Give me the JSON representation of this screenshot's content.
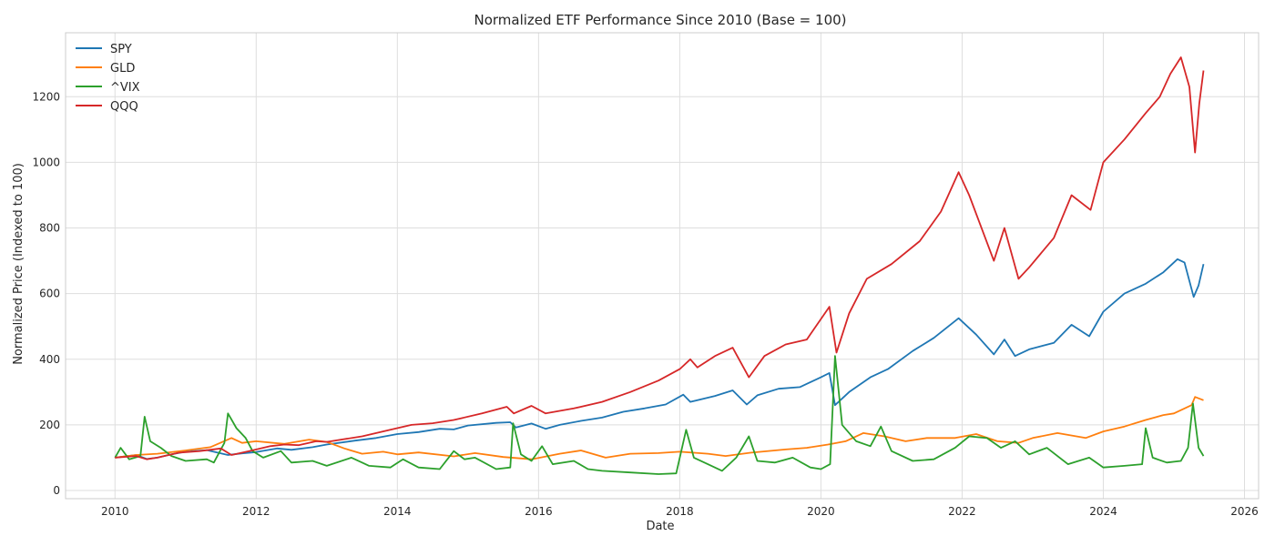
{
  "chart_data": {
    "type": "line",
    "title": "Normalized ETF Performance Since 2010 (Base = 100)",
    "xlabel": "Date",
    "ylabel": "Normalized Price (Indexed to 100)",
    "xlim": [
      2009.3,
      2026.2
    ],
    "ylim": [
      -25,
      1395
    ],
    "x_ticks": [
      2010,
      2012,
      2014,
      2016,
      2018,
      2020,
      2022,
      2024,
      2026
    ],
    "y_ticks": [
      0,
      200,
      400,
      600,
      800,
      1000,
      1200
    ],
    "grid": true,
    "legend_position": "top-left",
    "series": [
      {
        "name": "SPY",
        "color": "#1f77b4",
        "points": [
          [
            2010.0,
            100
          ],
          [
            2010.3,
            108
          ],
          [
            2010.45,
            96
          ],
          [
            2010.6,
            100
          ],
          [
            2010.8,
            110
          ],
          [
            2011.0,
            118
          ],
          [
            2011.3,
            123
          ],
          [
            2011.6,
            108
          ],
          [
            2011.8,
            113
          ],
          [
            2012.0,
            117
          ],
          [
            2012.3,
            128
          ],
          [
            2012.5,
            124
          ],
          [
            2012.8,
            132
          ],
          [
            2013.0,
            140
          ],
          [
            2013.4,
            152
          ],
          [
            2013.7,
            160
          ],
          [
            2014.0,
            172
          ],
          [
            2014.3,
            178
          ],
          [
            2014.6,
            188
          ],
          [
            2014.8,
            186
          ],
          [
            2015.0,
            198
          ],
          [
            2015.4,
            206
          ],
          [
            2015.6,
            208
          ],
          [
            2015.68,
            192
          ],
          [
            2015.9,
            204
          ],
          [
            2016.1,
            188
          ],
          [
            2016.3,
            200
          ],
          [
            2016.6,
            212
          ],
          [
            2016.9,
            222
          ],
          [
            2017.2,
            240
          ],
          [
            2017.5,
            250
          ],
          [
            2017.8,
            262
          ],
          [
            2018.05,
            292
          ],
          [
            2018.15,
            270
          ],
          [
            2018.5,
            288
          ],
          [
            2018.75,
            305
          ],
          [
            2018.95,
            262
          ],
          [
            2019.1,
            290
          ],
          [
            2019.4,
            310
          ],
          [
            2019.7,
            315
          ],
          [
            2020.0,
            345
          ],
          [
            2020.12,
            358
          ],
          [
            2020.2,
            260
          ],
          [
            2020.4,
            300
          ],
          [
            2020.7,
            345
          ],
          [
            2020.95,
            370
          ],
          [
            2021.3,
            425
          ],
          [
            2021.6,
            465
          ],
          [
            2021.95,
            525
          ],
          [
            2022.2,
            475
          ],
          [
            2022.45,
            415
          ],
          [
            2022.6,
            460
          ],
          [
            2022.75,
            410
          ],
          [
            2022.95,
            430
          ],
          [
            2023.3,
            450
          ],
          [
            2023.55,
            505
          ],
          [
            2023.8,
            470
          ],
          [
            2024.0,
            545
          ],
          [
            2024.3,
            600
          ],
          [
            2024.6,
            630
          ],
          [
            2024.85,
            665
          ],
          [
            2025.05,
            705
          ],
          [
            2025.15,
            695
          ],
          [
            2025.28,
            590
          ],
          [
            2025.35,
            625
          ],
          [
            2025.42,
            690
          ]
        ]
      },
      {
        "name": "GLD",
        "color": "#ff7f0e",
        "points": [
          [
            2010.0,
            100
          ],
          [
            2010.3,
            108
          ],
          [
            2010.6,
            112
          ],
          [
            2011.0,
            122
          ],
          [
            2011.35,
            132
          ],
          [
            2011.65,
            160
          ],
          [
            2011.8,
            145
          ],
          [
            2012.0,
            150
          ],
          [
            2012.4,
            142
          ],
          [
            2012.75,
            155
          ],
          [
            2013.0,
            148
          ],
          [
            2013.25,
            128
          ],
          [
            2013.5,
            112
          ],
          [
            2013.8,
            118
          ],
          [
            2014.0,
            110
          ],
          [
            2014.3,
            116
          ],
          [
            2014.8,
            104
          ],
          [
            2015.1,
            114
          ],
          [
            2015.5,
            102
          ],
          [
            2015.9,
            95
          ],
          [
            2016.3,
            112
          ],
          [
            2016.6,
            122
          ],
          [
            2016.95,
            100
          ],
          [
            2017.3,
            112
          ],
          [
            2017.7,
            114
          ],
          [
            2018.0,
            118
          ],
          [
            2018.4,
            112
          ],
          [
            2018.65,
            105
          ],
          [
            2019.0,
            115
          ],
          [
            2019.5,
            125
          ],
          [
            2019.8,
            130
          ],
          [
            2020.1,
            140
          ],
          [
            2020.35,
            150
          ],
          [
            2020.6,
            175
          ],
          [
            2020.9,
            165
          ],
          [
            2021.2,
            150
          ],
          [
            2021.5,
            160
          ],
          [
            2021.9,
            160
          ],
          [
            2022.2,
            172
          ],
          [
            2022.5,
            150
          ],
          [
            2022.8,
            145
          ],
          [
            2023.0,
            160
          ],
          [
            2023.35,
            175
          ],
          [
            2023.75,
            160
          ],
          [
            2024.0,
            180
          ],
          [
            2024.3,
            195
          ],
          [
            2024.6,
            215
          ],
          [
            2024.85,
            230
          ],
          [
            2025.0,
            235
          ],
          [
            2025.25,
            260
          ],
          [
            2025.3,
            285
          ],
          [
            2025.42,
            275
          ]
        ]
      },
      {
        "name": "^VIX",
        "color": "#2ca02c",
        "points": [
          [
            2010.0,
            100
          ],
          [
            2010.08,
            130
          ],
          [
            2010.2,
            95
          ],
          [
            2010.36,
            105
          ],
          [
            2010.42,
            225
          ],
          [
            2010.5,
            150
          ],
          [
            2010.65,
            130
          ],
          [
            2010.8,
            105
          ],
          [
            2011.0,
            90
          ],
          [
            2011.3,
            95
          ],
          [
            2011.4,
            85
          ],
          [
            2011.55,
            145
          ],
          [
            2011.6,
            235
          ],
          [
            2011.72,
            190
          ],
          [
            2011.85,
            160
          ],
          [
            2011.95,
            120
          ],
          [
            2012.1,
            100
          ],
          [
            2012.35,
            120
          ],
          [
            2012.5,
            85
          ],
          [
            2012.8,
            90
          ],
          [
            2013.0,
            75
          ],
          [
            2013.35,
            100
          ],
          [
            2013.6,
            75
          ],
          [
            2013.9,
            70
          ],
          [
            2014.08,
            95
          ],
          [
            2014.3,
            70
          ],
          [
            2014.6,
            65
          ],
          [
            2014.8,
            120
          ],
          [
            2014.95,
            95
          ],
          [
            2015.1,
            100
          ],
          [
            2015.4,
            65
          ],
          [
            2015.6,
            70
          ],
          [
            2015.64,
            205
          ],
          [
            2015.75,
            110
          ],
          [
            2015.9,
            90
          ],
          [
            2016.05,
            135
          ],
          [
            2016.2,
            80
          ],
          [
            2016.5,
            90
          ],
          [
            2016.7,
            65
          ],
          [
            2016.9,
            60
          ],
          [
            2017.3,
            55
          ],
          [
            2017.7,
            50
          ],
          [
            2017.95,
            52
          ],
          [
            2018.09,
            185
          ],
          [
            2018.2,
            100
          ],
          [
            2018.6,
            60
          ],
          [
            2018.8,
            100
          ],
          [
            2018.98,
            165
          ],
          [
            2019.1,
            90
          ],
          [
            2019.35,
            85
          ],
          [
            2019.6,
            100
          ],
          [
            2019.85,
            70
          ],
          [
            2020.0,
            65
          ],
          [
            2020.13,
            80
          ],
          [
            2020.2,
            410
          ],
          [
            2020.3,
            200
          ],
          [
            2020.5,
            150
          ],
          [
            2020.7,
            135
          ],
          [
            2020.85,
            195
          ],
          [
            2021.0,
            120
          ],
          [
            2021.3,
            90
          ],
          [
            2021.6,
            95
          ],
          [
            2021.9,
            130
          ],
          [
            2022.1,
            165
          ],
          [
            2022.35,
            160
          ],
          [
            2022.55,
            130
          ],
          [
            2022.75,
            150
          ],
          [
            2022.95,
            110
          ],
          [
            2023.2,
            130
          ],
          [
            2023.5,
            80
          ],
          [
            2023.8,
            100
          ],
          [
            2024.0,
            70
          ],
          [
            2024.3,
            75
          ],
          [
            2024.55,
            80
          ],
          [
            2024.6,
            190
          ],
          [
            2024.7,
            100
          ],
          [
            2024.9,
            85
          ],
          [
            2025.1,
            90
          ],
          [
            2025.2,
            130
          ],
          [
            2025.27,
            265
          ],
          [
            2025.35,
            130
          ],
          [
            2025.42,
            105
          ]
        ]
      },
      {
        "name": "QQQ",
        "color": "#d62728",
        "points": [
          [
            2010.0,
            100
          ],
          [
            2010.3,
            105
          ],
          [
            2010.45,
            95
          ],
          [
            2010.6,
            100
          ],
          [
            2010.9,
            115
          ],
          [
            2011.2,
            120
          ],
          [
            2011.5,
            128
          ],
          [
            2011.65,
            108
          ],
          [
            2011.9,
            120
          ],
          [
            2012.2,
            135
          ],
          [
            2012.4,
            140
          ],
          [
            2012.6,
            138
          ],
          [
            2012.85,
            150
          ],
          [
            2013.0,
            148
          ],
          [
            2013.5,
            165
          ],
          [
            2013.9,
            185
          ],
          [
            2014.2,
            200
          ],
          [
            2014.5,
            205
          ],
          [
            2014.8,
            215
          ],
          [
            2015.2,
            235
          ],
          [
            2015.55,
            255
          ],
          [
            2015.65,
            235
          ],
          [
            2015.9,
            258
          ],
          [
            2016.1,
            235
          ],
          [
            2016.5,
            250
          ],
          [
            2016.9,
            270
          ],
          [
            2017.3,
            300
          ],
          [
            2017.7,
            335
          ],
          [
            2018.0,
            370
          ],
          [
            2018.15,
            400
          ],
          [
            2018.25,
            375
          ],
          [
            2018.5,
            410
          ],
          [
            2018.75,
            435
          ],
          [
            2018.98,
            345
          ],
          [
            2019.2,
            410
          ],
          [
            2019.5,
            445
          ],
          [
            2019.8,
            460
          ],
          [
            2020.12,
            560
          ],
          [
            2020.22,
            420
          ],
          [
            2020.4,
            540
          ],
          [
            2020.65,
            645
          ],
          [
            2021.0,
            690
          ],
          [
            2021.4,
            760
          ],
          [
            2021.7,
            850
          ],
          [
            2021.95,
            970
          ],
          [
            2022.1,
            900
          ],
          [
            2022.45,
            700
          ],
          [
            2022.6,
            800
          ],
          [
            2022.8,
            645
          ],
          [
            2022.95,
            680
          ],
          [
            2023.3,
            770
          ],
          [
            2023.55,
            900
          ],
          [
            2023.82,
            855
          ],
          [
            2024.0,
            1000
          ],
          [
            2024.3,
            1070
          ],
          [
            2024.6,
            1150
          ],
          [
            2024.8,
            1200
          ],
          [
            2024.95,
            1270
          ],
          [
            2025.1,
            1320
          ],
          [
            2025.22,
            1230
          ],
          [
            2025.3,
            1030
          ],
          [
            2025.36,
            1180
          ],
          [
            2025.42,
            1280
          ]
        ]
      }
    ]
  }
}
